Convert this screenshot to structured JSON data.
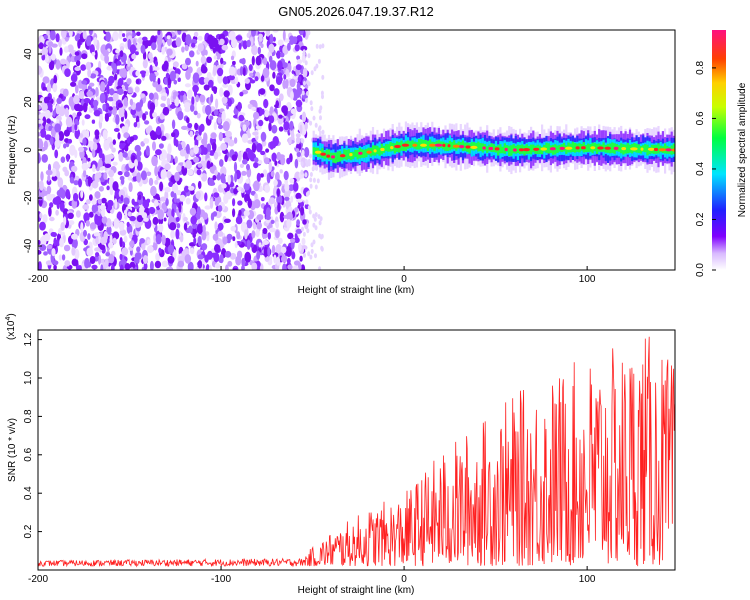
{
  "title": "GN05.2026.047.19.37.R12",
  "chart_data": [
    {
      "type": "heatmap",
      "xlabel": "Height of straight line (km)",
      "ylabel": "Frequency (Hz)",
      "xlim": [
        -200,
        148
      ],
      "ylim": [
        -50,
        50
      ],
      "x_ticks": [
        "-200",
        "-100",
        "0",
        "100"
      ],
      "y_ticks": [
        "40",
        "20",
        "0",
        "-20",
        "-40"
      ],
      "colorbar": {
        "label": "Normalized spectral amplitude",
        "range": [
          0.0,
          0.95
        ],
        "ticks": [
          "0.0",
          "0.2",
          "0.4",
          "0.6",
          "0.8"
        ],
        "colors": [
          "#ffffff",
          "#8000ff",
          "#0000ff",
          "#00ffff",
          "#00ff00",
          "#ffff00",
          "#ff8000",
          "#ff0000",
          "#ff0080"
        ]
      },
      "regions": [
        {
          "description_x_range": [
            -200,
            -53
          ],
          "pattern": "scattered noise",
          "amplitude": 0.05
        },
        {
          "description_x_range": [
            -53,
            148
          ],
          "pattern": "narrow band near 0 Hz",
          "amplitude": 0.9
        }
      ],
      "signal_band_center": [
        {
          "x": -50,
          "y": 0
        },
        {
          "x": -40,
          "y": -3
        },
        {
          "x": -20,
          "y": -1
        },
        {
          "x": 0,
          "y": 2
        },
        {
          "x": 20,
          "y": 2
        },
        {
          "x": 60,
          "y": 0
        },
        {
          "x": 100,
          "y": 1
        },
        {
          "x": 148,
          "y": 0
        }
      ]
    },
    {
      "type": "line",
      "xlabel": "Height of straight line (km)",
      "ylabel": "SNR (10 * v/v)",
      "y_multiplier": "(x10",
      "y_multiplier_exp": "4",
      "y_multiplier_close": ")",
      "xlim": [
        -200,
        148
      ],
      "ylim": [
        0,
        1.25
      ],
      "x_ticks": [
        "-200",
        "-100",
        "0",
        "100"
      ],
      "y_ticks": [
        "0.2",
        "0.4",
        "0.6",
        "0.8",
        "1.0",
        "1.2"
      ],
      "color": "#ff2020",
      "series": [
        {
          "envelope": [
            {
              "x": -200,
              "max": 0.05
            },
            {
              "x": -55,
              "max": 0.06
            },
            {
              "x": -40,
              "max": 0.18
            },
            {
              "x": -20,
              "max": 0.3
            },
            {
              "x": 0,
              "max": 0.38
            },
            {
              "x": 20,
              "max": 0.6
            },
            {
              "x": 40,
              "max": 0.75
            },
            {
              "x": 60,
              "max": 0.9
            },
            {
              "x": 80,
              "max": 1.0
            },
            {
              "x": 100,
              "max": 1.1
            },
            {
              "x": 120,
              "max": 1.15
            },
            {
              "x": 130,
              "max": 1.25
            },
            {
              "x": 148,
              "max": 1.05
            }
          ]
        }
      ]
    }
  ]
}
